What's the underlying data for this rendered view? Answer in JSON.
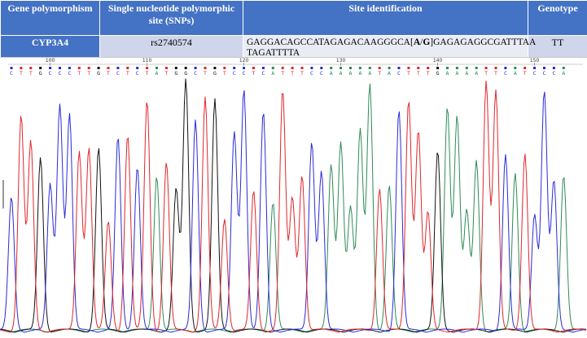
{
  "table": {
    "headers": [
      "Gene polymorphism",
      "Single nucleotide polymorphic site (SNPs)",
      "Site identification",
      "Genotype"
    ],
    "row": {
      "gene": "CYP3A4",
      "snp": "rs2740574",
      "site_prefix": "GAGGACAGCCATAGAGACAAGGGCA[",
      "site_a": "A",
      "site_slash": "/",
      "site_g": "G",
      "site_suffix": "]GAGAGAGGCGATTTAA TAGATTTTA",
      "genotype": "TT"
    }
  },
  "chromatogram": {
    "base_calls": "CTTGCCCTTGTCTCTATGGCTGTCCTCATTTCCAAAAATACTTTGAAAATTCATCCCA",
    "ruler_labels": [
      "100",
      "110",
      "120",
      "130",
      "140",
      "150"
    ],
    "colors": {
      "A": "#2e8b57",
      "C": "#2a2ad8",
      "G": "#111111",
      "T": "#e0262b"
    }
  }
}
